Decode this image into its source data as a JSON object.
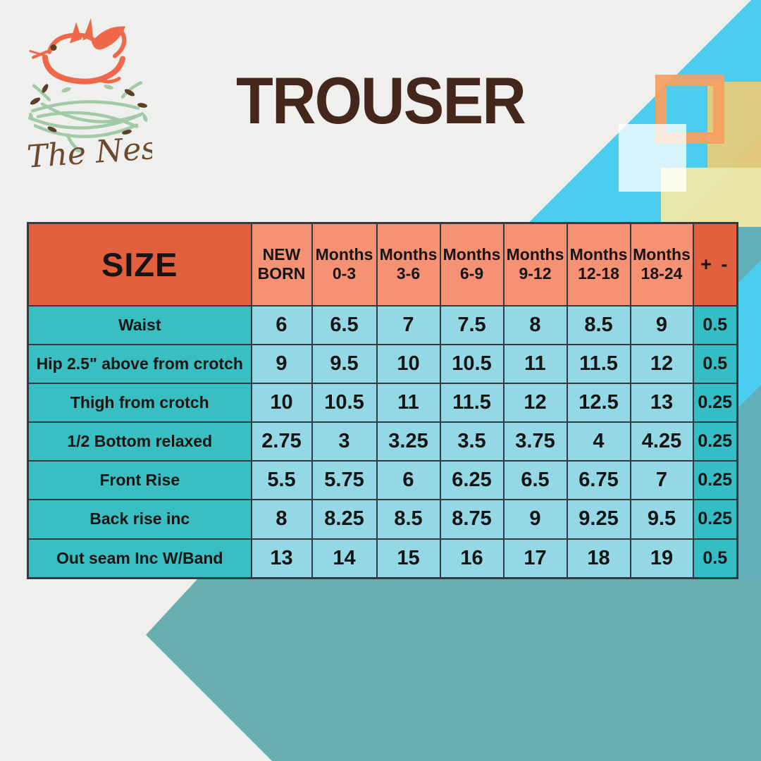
{
  "brand": {
    "name": "The Nest"
  },
  "title": "TROUSER",
  "table": {
    "size_label": "SIZE",
    "tolerance_label": "+ -",
    "columns": [
      {
        "line1": "NEW",
        "line2": "BORN"
      },
      {
        "line1": "Months",
        "line2": "0-3"
      },
      {
        "line1": "Months",
        "line2": "3-6"
      },
      {
        "line1": "Months",
        "line2": "6-9"
      },
      {
        "line1": "Months",
        "line2": "9-12"
      },
      {
        "line1": "Months",
        "line2": "12-18"
      },
      {
        "line1": "Months",
        "line2": "18-24"
      }
    ],
    "rows": [
      {
        "label": "Waist",
        "values": [
          "6",
          "6.5",
          "7",
          "7.5",
          "8",
          "8.5",
          "9"
        ],
        "tolerance": "0.5"
      },
      {
        "label": "Hip 2.5\" above from crotch",
        "values": [
          "9",
          "9.5",
          "10",
          "10.5",
          "11",
          "11.5",
          "12"
        ],
        "tolerance": "0.5"
      },
      {
        "label": "Thigh  from crotch",
        "values": [
          "10",
          "10.5",
          "11",
          "11.5",
          "12",
          "12.5",
          "13"
        ],
        "tolerance": "0.25"
      },
      {
        "label": "1/2 Bottom relaxed",
        "values": [
          "2.75",
          "3",
          "3.25",
          "3.5",
          "3.75",
          "4",
          "4.25"
        ],
        "tolerance": "0.25"
      },
      {
        "label": "Front Rise",
        "values": [
          "5.5",
          "5.75",
          "6",
          "6.25",
          "6.5",
          "6.75",
          "7"
        ],
        "tolerance": "0.25"
      },
      {
        "label": "Back rise inc",
        "values": [
          "8",
          "8.25",
          "8.5",
          "8.75",
          "9",
          "9.25",
          "9.5"
        ],
        "tolerance": "0.25"
      },
      {
        "label": "Out seam Inc W/Band",
        "values": [
          "13",
          "14",
          "15",
          "16",
          "17",
          "18",
          "19"
        ],
        "tolerance": "0.5"
      }
    ]
  },
  "colors": {
    "background": "#efefee",
    "title_brown": "#44261a",
    "header_dark_orange": "#e2603e",
    "header_salmon": "#f79173",
    "label_teal": "#39bfc2",
    "value_light_blue": "#93d8e4",
    "tolerance_teal": "#35bdc6",
    "grid_border": "#323b41",
    "stripe_cyan": "#4bcdf0",
    "stripe_muted_teal": "#63b0ba",
    "bottom_banner_teal": "#67aeae",
    "logo_orange": "#f0684a",
    "logo_sage": "#a2caa7",
    "logo_brown": "#6b4a2d"
  }
}
